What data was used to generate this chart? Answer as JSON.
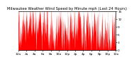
{
  "title": "Milwaukee Weather Wind Speed by Minute mph (Last 24 Hours)",
  "bg_color": "#ffffff",
  "fill_color": "#ff0000",
  "grid_color": "#bbbbbb",
  "ylim": [
    0,
    15
  ],
  "yticks": [
    0,
    3,
    6,
    9,
    12,
    15
  ],
  "ytick_labels": [
    "0",
    "3",
    "6",
    "9",
    "12",
    "15"
  ],
  "num_points": 1440,
  "title_fontsize": 3.8,
  "tick_fontsize": 3.2,
  "num_xticks": 13,
  "seed": 42
}
